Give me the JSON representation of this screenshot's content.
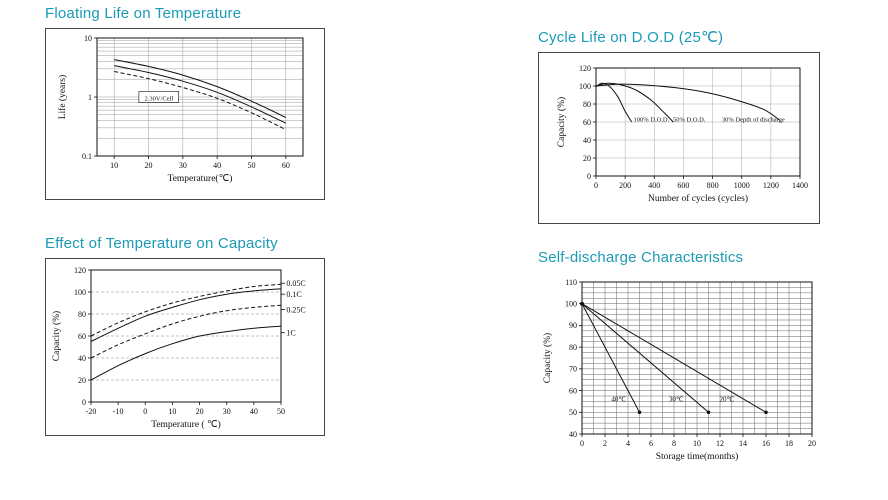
{
  "page": {
    "background": "#ffffff",
    "accent": "#1b9bb6"
  },
  "chart_data": [
    {
      "type": "line",
      "title": "Floating Life on Temperature",
      "xlabel": "Temperature(℃)",
      "ylabel": "Life (years)",
      "xlim": [
        5,
        65
      ],
      "ylim": [
        0.1,
        10
      ],
      "y_scale": "log",
      "x_ticks": [
        10,
        20,
        30,
        40,
        50,
        60
      ],
      "y_ticks": [
        0.1,
        1,
        10
      ],
      "y_tick_labels": [
        "0.1",
        "1",
        "10"
      ],
      "frame": true,
      "legend_position": "none",
      "grid": {
        "x_values": [
          10,
          20,
          30,
          40,
          50,
          60
        ],
        "y_values": [
          0.2,
          0.3,
          0.4,
          0.5,
          0.6,
          0.7,
          0.8,
          0.9,
          1,
          2,
          3,
          4,
          5,
          6,
          7,
          8,
          9
        ],
        "color": "#9a9a9a"
      },
      "series": [
        {
          "name": "float-life-upper",
          "style": "solid",
          "smooth": true,
          "x": [
            10,
            20,
            30,
            40,
            50,
            60
          ],
          "y": [
            4.3,
            3.3,
            2.35,
            1.5,
            0.85,
            0.45
          ]
        },
        {
          "name": "float-life-lower",
          "style": "solid",
          "smooth": true,
          "x": [
            10,
            20,
            30,
            40,
            50,
            60
          ],
          "y": [
            3.4,
            2.6,
            1.85,
            1.2,
            0.68,
            0.36
          ]
        },
        {
          "name": "float-life-min",
          "style": "dashed",
          "smooth": true,
          "x": [
            10,
            20,
            30,
            40,
            50,
            60
          ],
          "y": [
            2.7,
            2.05,
            1.45,
            0.95,
            0.54,
            0.28
          ]
        }
      ],
      "annotations": [
        {
          "text": "2.30V/Cell",
          "x": 23,
          "y": 0.95,
          "boxed": true,
          "fs": 6.5
        }
      ]
    },
    {
      "type": "line",
      "title": "Cycle Life on D.O.D (25℃)",
      "xlabel": "Number of cycles (cycles)",
      "ylabel": "Capacity (%)",
      "xlim": [
        0,
        1400
      ],
      "ylim": [
        0,
        120
      ],
      "x_ticks": [
        0,
        200,
        400,
        600,
        800,
        1000,
        1200,
        1400
      ],
      "y_ticks": [
        0,
        20,
        40,
        60,
        80,
        100,
        120
      ],
      "frame": true,
      "grid": {
        "x_values": [
          200,
          400,
          600,
          800,
          1000,
          1200
        ],
        "y_values": [
          20,
          40,
          60,
          80,
          100
        ],
        "color": "#aaaaaa"
      },
      "series": [
        {
          "name": "dod-100",
          "style": "solid",
          "smooth": true,
          "x": [
            0,
            40,
            90,
            150,
            200,
            245
          ],
          "y": [
            99,
            103,
            100,
            88,
            72,
            60
          ]
        },
        {
          "name": "dod-50",
          "style": "solid",
          "smooth": true,
          "x": [
            0,
            80,
            180,
            280,
            380,
            470,
            530
          ],
          "y": [
            100,
            103,
            101,
            95,
            84,
            70,
            60
          ]
        },
        {
          "name": "dod-30",
          "style": "solid",
          "smooth": true,
          "x": [
            0,
            150,
            350,
            550,
            750,
            950,
            1150,
            1260
          ],
          "y": [
            100,
            102,
            101,
            98,
            93,
            85,
            74,
            62
          ]
        }
      ],
      "annotations": [
        {
          "text": "100% D.O.D.",
          "x": 380,
          "y": 63,
          "fs": 6.5
        },
        {
          "text": "50% D.O.D.",
          "x": 640,
          "y": 63,
          "fs": 6.5
        },
        {
          "text": "30% Depth of discharge",
          "x": 1080,
          "y": 63,
          "fs": 6.5
        }
      ]
    },
    {
      "type": "line",
      "title": "Effect of Temperature on Capacity",
      "xlabel": "Temperature ( ℃)",
      "ylabel": "Capacity (%)",
      "xlim": [
        -20,
        50
      ],
      "ylim": [
        0,
        120
      ],
      "x_ticks": [
        -20,
        -10,
        0,
        10,
        20,
        30,
        40,
        50
      ],
      "y_ticks": [
        0,
        20,
        40,
        60,
        80,
        100,
        120
      ],
      "frame": true,
      "grid": {
        "y_values": [
          20,
          40,
          60,
          80,
          100
        ],
        "y_dash": true,
        "color": "#888888"
      },
      "series": [
        {
          "name": "rate-0.05C",
          "style": "dashed",
          "smooth": true,
          "x": [
            -20,
            -10,
            0,
            10,
            20,
            30,
            40,
            50
          ],
          "y": [
            60,
            72,
            82,
            90,
            96,
            101,
            105,
            107
          ]
        },
        {
          "name": "rate-0.1C",
          "style": "solid",
          "smooth": true,
          "x": [
            -20,
            -10,
            0,
            10,
            20,
            30,
            40,
            50
          ],
          "y": [
            55,
            67,
            78,
            86,
            93,
            98,
            101,
            103
          ]
        },
        {
          "name": "rate-0.25C",
          "style": "dashed",
          "smooth": true,
          "x": [
            -20,
            -10,
            0,
            10,
            20,
            30,
            40,
            50
          ],
          "y": [
            40,
            52,
            62,
            71,
            78,
            83,
            86,
            88
          ]
        },
        {
          "name": "rate-1C",
          "style": "solid",
          "smooth": true,
          "x": [
            -20,
            -10,
            0,
            10,
            20,
            30,
            40,
            50
          ],
          "y": [
            20,
            33,
            44,
            53,
            60,
            64,
            67,
            69
          ]
        }
      ],
      "annotations": [
        {
          "text": "0.05C",
          "x": 52,
          "y": 108,
          "anchor": "start",
          "leader": true,
          "fs": 8
        },
        {
          "text": "0.1C",
          "x": 52,
          "y": 98,
          "anchor": "start",
          "leader": true,
          "fs": 8
        },
        {
          "text": "0.25C",
          "x": 52,
          "y": 84,
          "anchor": "start",
          "leader": true,
          "fs": 8
        },
        {
          "text": "1C",
          "x": 52,
          "y": 63,
          "anchor": "start",
          "leader": true,
          "fs": 8
        }
      ]
    },
    {
      "type": "line",
      "title": "Self-discharge Characteristics",
      "xlabel": "Storage time(months)",
      "ylabel": "Capacity (%)",
      "xlim": [
        0,
        20
      ],
      "ylim": [
        40,
        110
      ],
      "x_ticks": [
        0,
        2,
        4,
        6,
        8,
        10,
        12,
        14,
        16,
        18,
        20
      ],
      "y_ticks": [
        40,
        50,
        60,
        70,
        80,
        90,
        100,
        110
      ],
      "frame": false,
      "grid": {
        "x_step": 1,
        "y_step": 2.5,
        "color": "#666666"
      },
      "series": [
        {
          "name": "storage-40c",
          "style": "solid",
          "marker": "dot",
          "x": [
            0,
            5
          ],
          "y": [
            100,
            50
          ]
        },
        {
          "name": "storage-30c",
          "style": "solid",
          "marker": "dot",
          "x": [
            0,
            11
          ],
          "y": [
            100,
            50
          ]
        },
        {
          "name": "storage-20c",
          "style": "solid",
          "marker": "dot",
          "x": [
            0,
            16
          ],
          "y": [
            100,
            50
          ]
        }
      ],
      "annotations": [
        {
          "text": "40℃",
          "x": 3.2,
          "y": 56,
          "fs": 7
        },
        {
          "text": "30℃",
          "x": 8.2,
          "y": 56,
          "fs": 7
        },
        {
          "text": "20℃",
          "x": 12.6,
          "y": 56,
          "fs": 7
        }
      ]
    }
  ]
}
